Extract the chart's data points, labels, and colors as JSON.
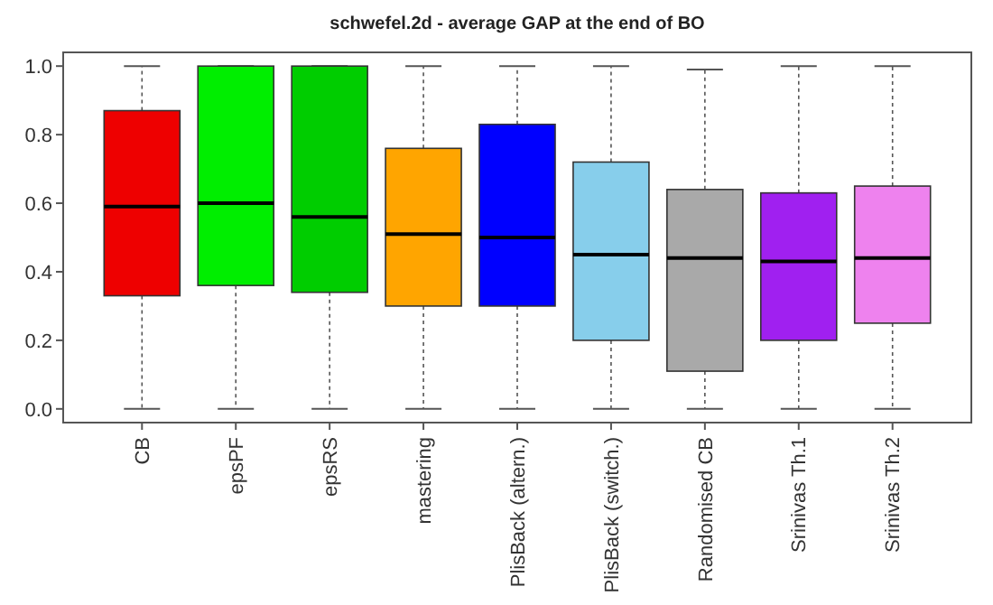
{
  "chart_data": {
    "type": "box",
    "title": "schwefel.2d - average GAP at the end of BO",
    "categories": [
      "CB",
      "epsPF",
      "epsRS",
      "mastering",
      "PlisBack (altern.)",
      "PlisBack (switch.)",
      "Randomised CB",
      "Srinivas Th.1",
      "Srinivas Th.2"
    ],
    "colors": [
      "#ee0000",
      "#00ee00",
      "#00cd00",
      "#ffa500",
      "#0000ff",
      "#87ceeb",
      "#a9a9a9",
      "#a020f0",
      "#ee82ee"
    ],
    "boxes": [
      {
        "low": 0,
        "q1": 0.33,
        "median": 0.59,
        "q3": 0.87,
        "high": 1.0
      },
      {
        "low": 0,
        "q1": 0.36,
        "median": 0.6,
        "q3": 1.0,
        "high": 1.0
      },
      {
        "low": 0,
        "q1": 0.34,
        "median": 0.56,
        "q3": 1.0,
        "high": 1.0
      },
      {
        "low": 0,
        "q1": 0.3,
        "median": 0.51,
        "q3": 0.76,
        "high": 1.0
      },
      {
        "low": 0,
        "q1": 0.3,
        "median": 0.5,
        "q3": 0.83,
        "high": 1.0
      },
      {
        "low": 0,
        "q1": 0.2,
        "median": 0.45,
        "q3": 0.72,
        "high": 1.0
      },
      {
        "low": 0,
        "q1": 0.11,
        "median": 0.44,
        "q3": 0.64,
        "high": 0.99
      },
      {
        "low": 0,
        "q1": 0.2,
        "median": 0.43,
        "q3": 0.63,
        "high": 1.0
      },
      {
        "low": 0,
        "q1": 0.25,
        "median": 0.44,
        "q3": 0.65,
        "high": 1.0
      }
    ],
    "ylim": [
      -0.04,
      1.04
    ],
    "yticks": [
      {
        "value": 0,
        "label": "0.0"
      },
      0.2,
      0.4,
      0.6,
      0.8,
      {
        "value": 1,
        "label": "1.0"
      }
    ],
    "grid": false
  }
}
